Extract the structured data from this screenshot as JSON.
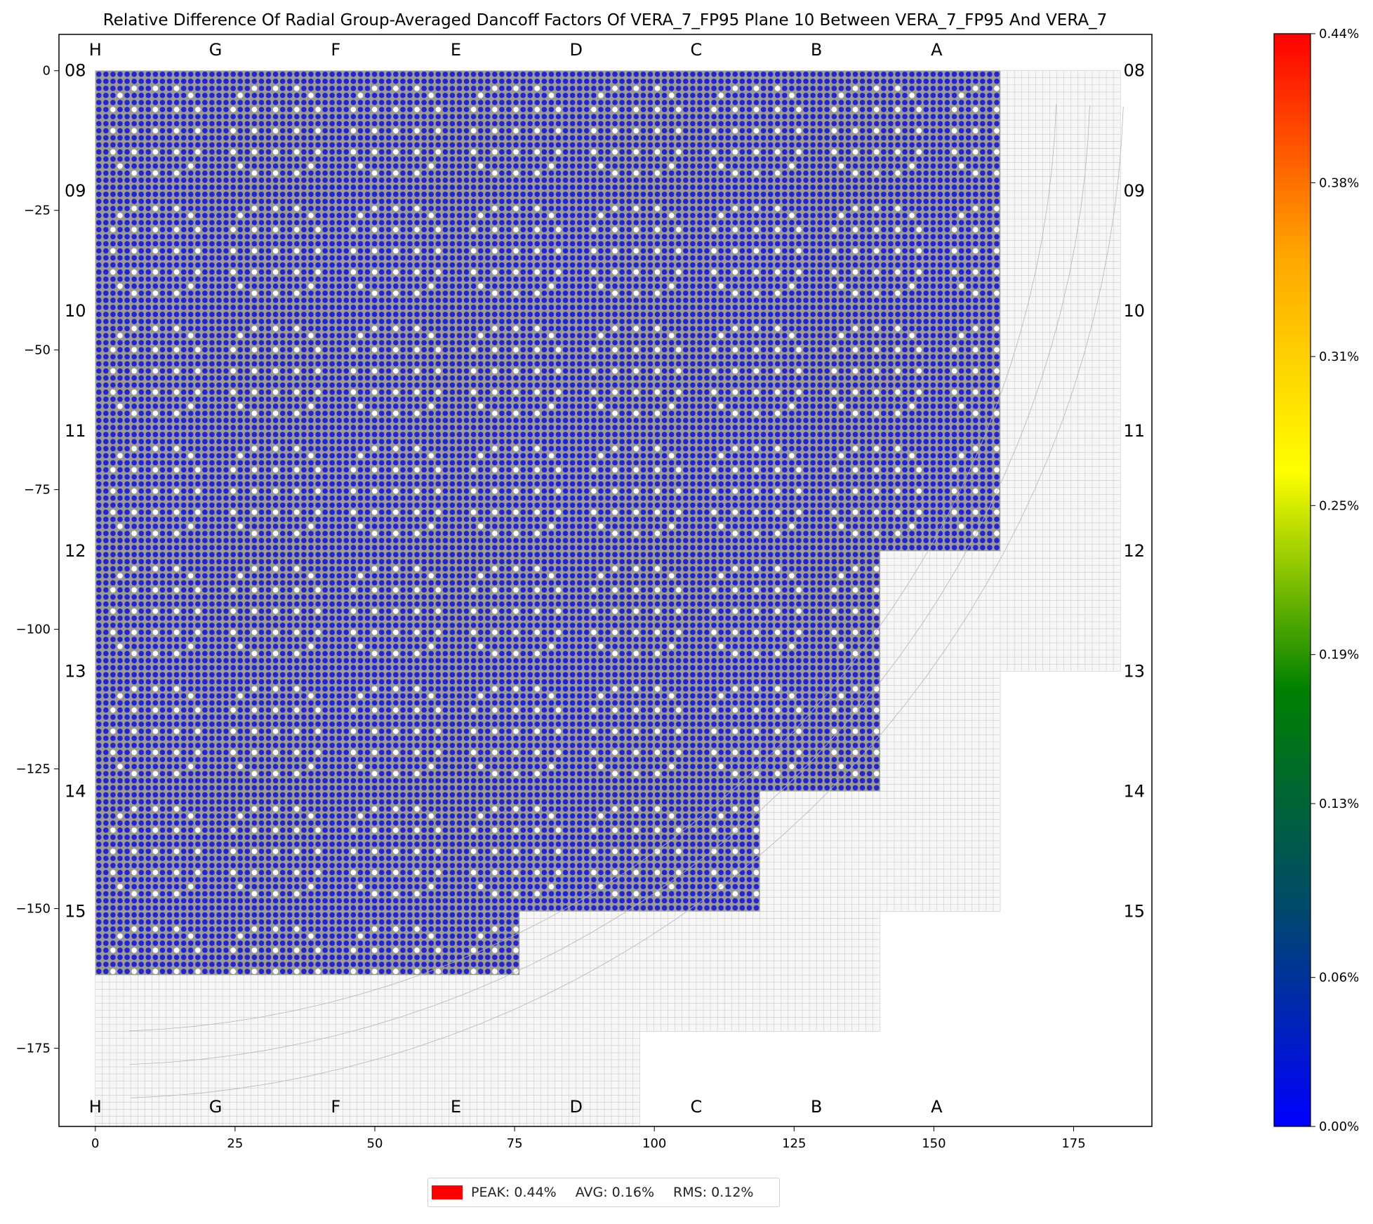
{
  "chart_data": {
    "type": "heatmap",
    "title": "Relative Difference Of Radial Group-Averaged Dancoff Factors Of VERA_7_FP95 Plane 10 Between VERA_7_FP95 And VERA_7",
    "xlim": [
      -6.5,
      189
    ],
    "ylim": [
      -189,
      6.5
    ],
    "x_ticks": [
      0,
      25,
      50,
      75,
      100,
      125,
      150,
      175
    ],
    "y_ticks": [
      0,
      -25,
      -50,
      -75,
      -100,
      -125,
      -150,
      -175
    ],
    "x_tick_labels": [
      "0",
      "25",
      "50",
      "75",
      "100",
      "125",
      "150",
      "175"
    ],
    "y_tick_labels": [
      "0",
      "−25",
      "−50",
      "−75",
      "−100",
      "−125",
      "−150",
      "−175"
    ],
    "column_labels": [
      "H",
      "G",
      "F",
      "E",
      "D",
      "C",
      "B",
      "A"
    ],
    "row_labels": [
      "08",
      "09",
      "10",
      "11",
      "12",
      "13",
      "14",
      "15"
    ],
    "assembly_pitch": 21.5,
    "pins_per_assembly": 17,
    "fuel_assemblies_per_row": [
      7.5,
      7.5,
      7.5,
      7.5,
      6.5,
      6.5,
      5.5,
      3.5
    ],
    "reflector_assemblies_per_row": [
      8.5,
      8.5,
      8.5,
      8.5,
      8.5,
      7.5,
      7.5,
      6.5,
      4.5
    ],
    "values_description": "fuel pins colored near 0.00%",
    "colorbar": {
      "min": 0.0,
      "max": 0.44,
      "tick_values": [
        0.0,
        0.06,
        0.13,
        0.19,
        0.25,
        0.31,
        0.38,
        0.44
      ],
      "tick_labels": [
        "0.00%",
        "0.06%",
        "0.13%",
        "0.19%",
        "0.25%",
        "0.31%",
        "0.38%",
        "0.44%"
      ],
      "colors": [
        "#0000ff",
        "#004a6b",
        "#008000",
        "#ffff00",
        "#ffa500",
        "#ff0000"
      ]
    },
    "pin_fill_color": "#2626c8",
    "guide_tube_color": "#ffffff",
    "grid_line_color": "#c9c9c9"
  },
  "legend": {
    "swatch_color": "#ff0000",
    "peak": "PEAK: 0.44%",
    "avg": "AVG: 0.16%",
    "rms": "RMS: 0.12%"
  }
}
